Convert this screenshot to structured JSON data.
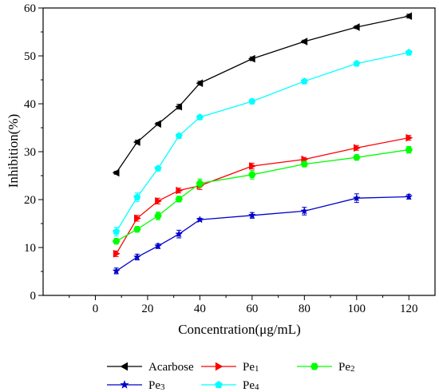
{
  "chart_data": {
    "type": "line",
    "title": "",
    "xlabel": "Concentration(μg/mL)",
    "ylabel": "Inhibition(%)",
    "xlim": [
      -20,
      130
    ],
    "ylim": [
      0,
      60
    ],
    "xticks": [
      0,
      20,
      40,
      60,
      80,
      100,
      120
    ],
    "yticks": [
      0,
      10,
      20,
      30,
      40,
      50,
      60
    ],
    "grid": false,
    "legend_position": "bottom",
    "x": [
      8,
      16,
      24,
      32,
      40,
      60,
      80,
      100,
      120
    ],
    "series": [
      {
        "name": "Acarbose",
        "name_base": "Acarbose",
        "name_sub": "",
        "color": "#000000",
        "marker": "triangle-left",
        "values": [
          25.6,
          32.0,
          35.8,
          39.4,
          44.3,
          49.4,
          53.0,
          56.0,
          58.3
        ],
        "errors": [
          0.3,
          0.4,
          0.3,
          0.5,
          0.4,
          0.4,
          0.3,
          0.3,
          0.4
        ]
      },
      {
        "name": "Pe1",
        "name_base": "Pe",
        "name_sub": "1",
        "color": "#ff0000",
        "marker": "triangle-right",
        "values": [
          8.7,
          16.1,
          19.7,
          21.9,
          22.9,
          27.0,
          28.4,
          30.8,
          32.9
        ],
        "errors": [
          0.6,
          0.6,
          0.6,
          0.5,
          0.8,
          0.6,
          0.4,
          0.5,
          0.5
        ]
      },
      {
        "name": "Pe2",
        "name_base": "Pe",
        "name_sub": "2",
        "color": "#00ff00",
        "marker": "hexagon",
        "values": [
          11.3,
          13.8,
          16.6,
          20.1,
          23.4,
          25.2,
          27.4,
          28.8,
          30.4
        ],
        "errors": [
          0.4,
          0.5,
          0.8,
          0.6,
          0.9,
          0.9,
          0.5,
          0.5,
          0.7
        ]
      },
      {
        "name": "Pe3",
        "name_base": "Pe",
        "name_sub": "3",
        "color": "#0000cc",
        "marker": "star",
        "values": [
          5.1,
          8.0,
          10.3,
          12.8,
          15.8,
          16.7,
          17.6,
          20.3,
          20.6
        ],
        "errors": [
          0.6,
          0.6,
          0.5,
          0.8,
          0.3,
          0.6,
          0.8,
          0.9,
          0.5
        ]
      },
      {
        "name": "Pe4",
        "name_base": "Pe",
        "name_sub": "4",
        "color": "#00ffff",
        "marker": "pentagon",
        "values": [
          13.3,
          20.5,
          26.5,
          33.3,
          37.2,
          40.5,
          44.7,
          48.4,
          50.7
        ],
        "errors": [
          0.9,
          0.9,
          0.5,
          0.5,
          0.4,
          0.5,
          0.4,
          0.4,
          0.4
        ]
      }
    ]
  }
}
